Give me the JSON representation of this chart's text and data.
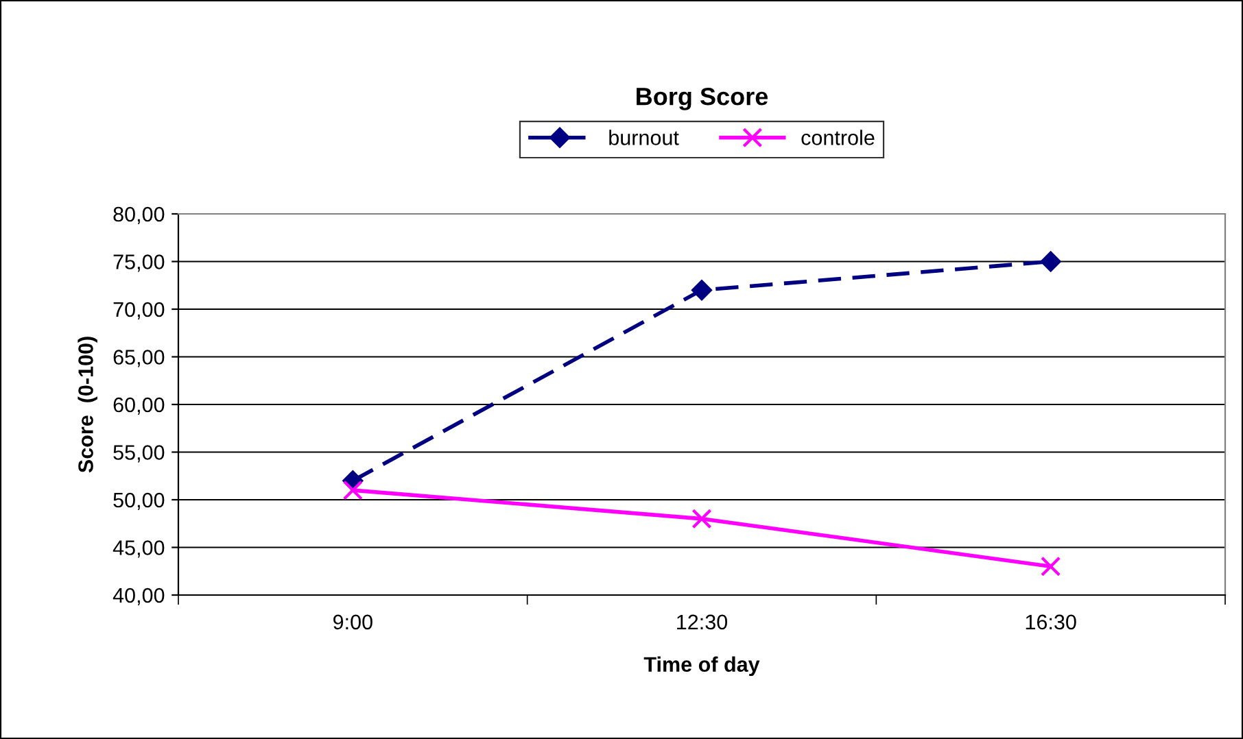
{
  "chart_data": {
    "type": "line",
    "title": "Borg Score",
    "xlabel": "Time of day",
    "ylabel": "Score  (0-100)",
    "categories": [
      "9:00",
      "12:30",
      "16:30"
    ],
    "series": [
      {
        "name": "burnout",
        "color": "#000080",
        "values": [
          52,
          72,
          75
        ],
        "marker": "diamond",
        "line_style": "dashed"
      },
      {
        "name": "controle",
        "color": "#ff00ff",
        "values": [
          51,
          48,
          43
        ],
        "marker": "cross",
        "line_style": "solid"
      }
    ],
    "ylim": [
      40,
      80
    ],
    "yticks": [
      {
        "value": 40,
        "label": "40,00"
      },
      {
        "value": 45,
        "label": "45,00"
      },
      {
        "value": 50,
        "label": "50,00"
      },
      {
        "value": 55,
        "label": "55,00"
      },
      {
        "value": 60,
        "label": "60,00"
      },
      {
        "value": 65,
        "label": "65,00"
      },
      {
        "value": 70,
        "label": "70,00"
      },
      {
        "value": 75,
        "label": "75,00"
      },
      {
        "value": 80,
        "label": "80,00"
      }
    ],
    "grid": "y",
    "legend": "top"
  }
}
